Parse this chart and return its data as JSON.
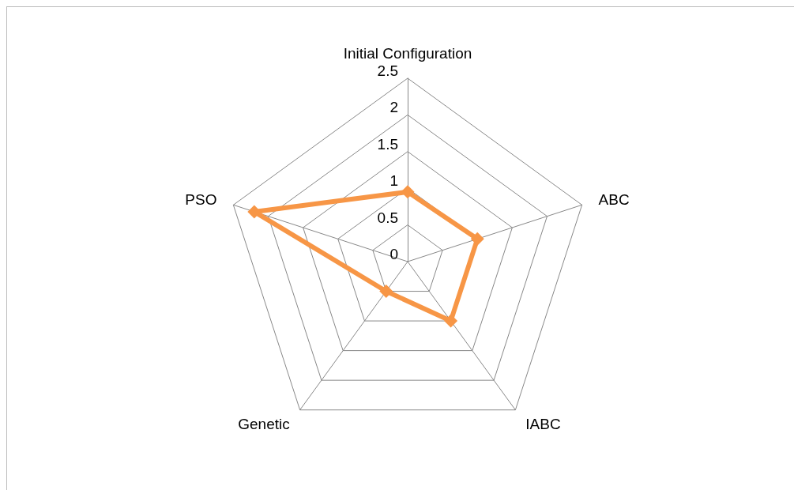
{
  "chart_data": {
    "type": "radar",
    "categories": [
      "Initial Configuration",
      "ABC",
      "IABC",
      "Genetic",
      "PSO"
    ],
    "series": [
      {
        "color": "#f79646",
        "values": [
          0.95,
          1,
          1,
          0.5,
          2.2
        ]
      }
    ],
    "ylim": [
      0,
      2.5
    ],
    "yticks": [
      0,
      0.5,
      1,
      1.5,
      2,
      2.5
    ],
    "grid": true,
    "marker": "diamond",
    "line_style": "solid"
  }
}
